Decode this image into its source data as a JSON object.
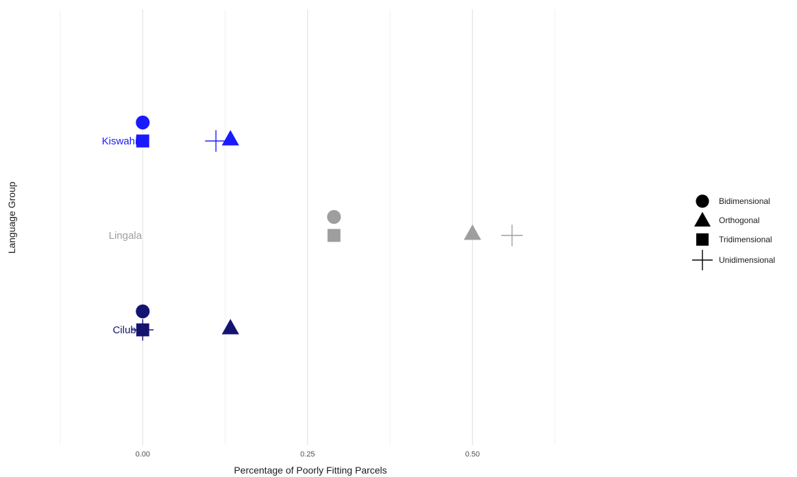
{
  "chart_data": {
    "type": "scatter",
    "title": "",
    "xlabel": "Percentage of Poorly Fitting Parcels",
    "ylabel": "Language Group",
    "xlim": [
      -0.125,
      0.75
    ],
    "x_ticks": [
      {
        "value": 0.0,
        "label": "0.00"
      },
      {
        "value": 0.25,
        "label": "0.25"
      },
      {
        "value": 0.5,
        "label": "0.50"
      }
    ],
    "x_minor_gridlines": [
      -0.125,
      0.125,
      0.375,
      0.625
    ],
    "grid": true,
    "categories": [
      {
        "name": "Kiswahili",
        "color": "#1a1aff"
      },
      {
        "name": "Lingala",
        "color": "#9e9e9e"
      },
      {
        "name": "Ciluba",
        "color": "#141470"
      }
    ],
    "legend_placement": "right",
    "legend": [
      {
        "label": "Bidimensional",
        "shape": "circle-icon"
      },
      {
        "label": "Orthogonal",
        "shape": "triangle-icon"
      },
      {
        "label": "Tridimensional",
        "shape": "square-icon"
      },
      {
        "label": "Unidimensional",
        "shape": "plus-icon"
      }
    ],
    "points": [
      {
        "group": "Kiswahili",
        "model": "Bidimensional",
        "x": 0.0
      },
      {
        "group": "Kiswahili",
        "model": "Tridimensional",
        "x": 0.0
      },
      {
        "group": "Kiswahili",
        "model": "Unidimensional",
        "x": 0.111
      },
      {
        "group": "Kiswahili",
        "model": "Orthogonal",
        "x": 0.133
      },
      {
        "group": "Lingala",
        "model": "Bidimensional",
        "x": 0.29
      },
      {
        "group": "Lingala",
        "model": "Tridimensional",
        "x": 0.29
      },
      {
        "group": "Lingala",
        "model": "Orthogonal",
        "x": 0.5
      },
      {
        "group": "Lingala",
        "model": "Unidimensional",
        "x": 0.56
      },
      {
        "group": "Ciluba",
        "model": "Bidimensional",
        "x": 0.0
      },
      {
        "group": "Ciluba",
        "model": "Tridimensional",
        "x": 0.0
      },
      {
        "group": "Ciluba",
        "model": "Unidimensional",
        "x": 0.0
      },
      {
        "group": "Ciluba",
        "model": "Orthogonal",
        "x": 0.133
      }
    ]
  }
}
